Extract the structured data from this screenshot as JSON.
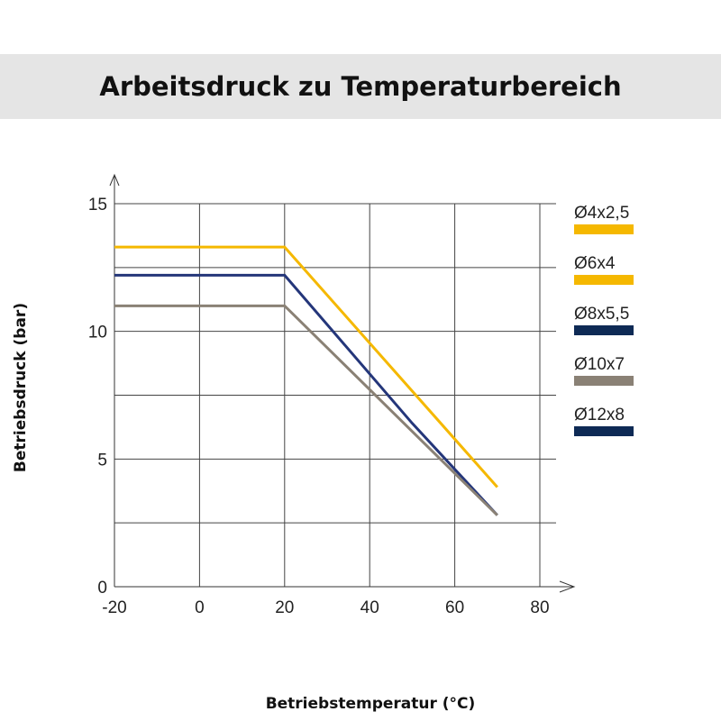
{
  "chart_data": {
    "type": "line",
    "title": "Arbeitsdruck zu Temperaturbereich",
    "xlabel": "Betriebstemperatur (°C)",
    "ylabel": "Betriebsdruck (bar)",
    "xlim": [
      -20,
      80
    ],
    "ylim": [
      0,
      15
    ],
    "x_ticks": [
      -20,
      0,
      20,
      40,
      60,
      80
    ],
    "y_ticks": [
      0,
      5,
      10,
      15
    ],
    "y_gridlines": [
      0,
      2.5,
      5,
      7.5,
      10,
      12.5,
      15
    ],
    "grid": true,
    "legend_position": "right",
    "legend": [
      {
        "name": "Ø4x2,5",
        "color": "#f5b800"
      },
      {
        "name": "Ø6x4",
        "color": "#f5b800"
      },
      {
        "name": "Ø8x5,5",
        "color": "#0e2a55"
      },
      {
        "name": "Ø10x7",
        "color": "#8a8175"
      },
      {
        "name": "Ø12x8",
        "color": "#0e2a55"
      }
    ],
    "series": [
      {
        "color": "#f5b800",
        "x": [
          -20,
          20,
          70
        ],
        "y": [
          13.3,
          13.3,
          3.9
        ]
      },
      {
        "color": "#24367a",
        "x": [
          -20,
          20,
          50,
          70
        ],
        "y": [
          12.2,
          12.2,
          6.4,
          2.8
        ]
      },
      {
        "color": "#8a8175",
        "x": [
          -20,
          20,
          70
        ],
        "y": [
          11.0,
          11.0,
          2.8
        ]
      }
    ]
  }
}
